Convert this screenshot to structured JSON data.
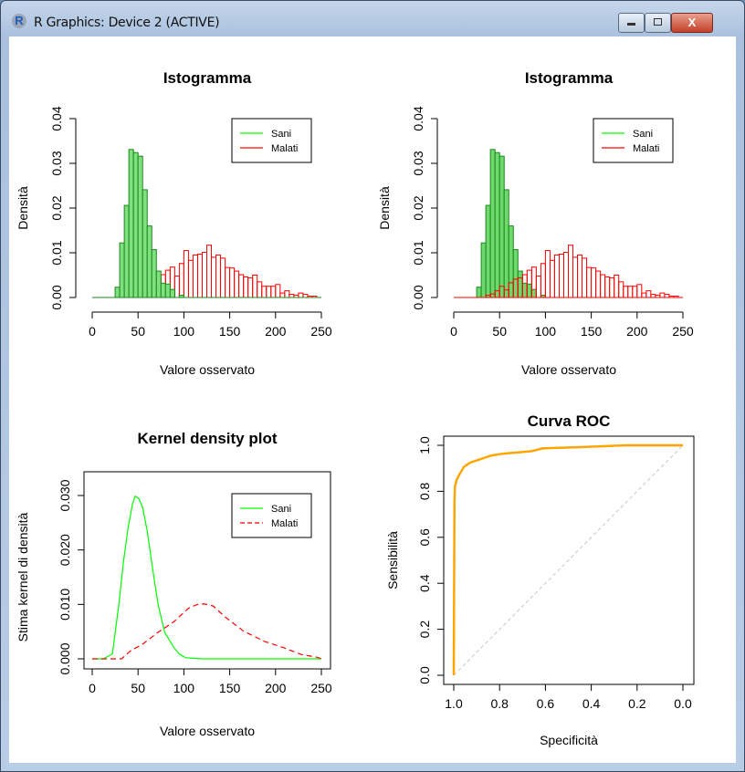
{
  "window": {
    "title": "R Graphics: Device 2 (ACTIVE)",
    "icon": "r-logo-icon",
    "close_label": "X"
  },
  "chart_data": [
    {
      "type": "bar",
      "title": "Istogramma",
      "xlabel": "Valore osservato",
      "ylabel": "Densità",
      "xlim": [
        0,
        250
      ],
      "ylim": [
        0,
        0.04
      ],
      "xticks": [
        "0",
        "50",
        "100",
        "150",
        "200",
        "250"
      ],
      "yticks": [
        "0.00",
        "0.01",
        "0.02",
        "0.03",
        "0.04"
      ],
      "bin_width": 5,
      "draw_order": [
        "Malati",
        "Sani"
      ],
      "legend": {
        "position": "top-right",
        "entries": [
          {
            "label": "Sani",
            "color": "#00ff00",
            "style": "solid"
          },
          {
            "label": "Malati",
            "color": "#ff0000",
            "style": "solid"
          }
        ]
      },
      "series": [
        {
          "name": "Sani",
          "color": "#1a8a1a",
          "fill": "#80e080",
          "bin_start": 25,
          "values": [
            0.0023,
            0.0122,
            0.0206,
            0.0331,
            0.0324,
            0.0316,
            0.0241,
            0.016,
            0.0107,
            0.0059,
            0.0032,
            0.003,
            0.0018,
            0,
            0.0005
          ]
        },
        {
          "name": "Malati",
          "color": "#ff0000",
          "fill": "none",
          "bin_start": 35,
          "values": [
            0.0005,
            0.0008,
            0.0015,
            0.0025,
            0.0017,
            0.0033,
            0.0041,
            0.0044,
            0.0051,
            0.0061,
            0.0068,
            0.0048,
            0.0076,
            0.0105,
            0.0083,
            0.0095,
            0.0097,
            0.0101,
            0.0117,
            0.009,
            0.0095,
            0.0088,
            0.0067,
            0.0066,
            0.0059,
            0.0051,
            0.0046,
            0.0044,
            0.005,
            0.0035,
            0.0025,
            0.0025,
            0.0025,
            0.0029,
            0.001,
            0.0015,
            0.0007,
            0.0005,
            0.001,
            0.0007,
            0.0003,
            0.0003
          ]
        }
      ]
    },
    {
      "type": "bar",
      "title": "Istogramma",
      "xlabel": "Valore osservato",
      "ylabel": "Densità",
      "xlim": [
        0,
        250
      ],
      "ylim": [
        0,
        0.04
      ],
      "xticks": [
        "0",
        "50",
        "100",
        "150",
        "200",
        "250"
      ],
      "yticks": [
        "0.00",
        "0.01",
        "0.02",
        "0.03",
        "0.04"
      ],
      "bin_width": 5,
      "draw_order": [
        "Sani",
        "Malati"
      ],
      "legend": {
        "position": "top-right",
        "entries": [
          {
            "label": "Sani",
            "color": "#00ff00",
            "style": "solid"
          },
          {
            "label": "Malati",
            "color": "#ff0000",
            "style": "solid"
          }
        ]
      },
      "series": [
        {
          "name": "Sani",
          "color": "#1a8a1a",
          "fill": "#6fd86f",
          "bin_start": 25,
          "values": [
            0.0023,
            0.0122,
            0.0206,
            0.0331,
            0.0324,
            0.0316,
            0.0241,
            0.016,
            0.0107,
            0.0059,
            0.0032,
            0.003,
            0.0018,
            0,
            0.0005
          ]
        },
        {
          "name": "Malati",
          "color": "#ff0000",
          "fill": "none",
          "bin_start": 35,
          "values": [
            0.0005,
            0.0008,
            0.0015,
            0.0025,
            0.0017,
            0.0033,
            0.0041,
            0.0044,
            0.0051,
            0.0061,
            0.0068,
            0.0048,
            0.0076,
            0.0105,
            0.0083,
            0.0095,
            0.0097,
            0.0101,
            0.0117,
            0.009,
            0.0095,
            0.0088,
            0.0067,
            0.0066,
            0.0059,
            0.0051,
            0.0046,
            0.0044,
            0.005,
            0.0035,
            0.0025,
            0.0025,
            0.0025,
            0.0029,
            0.001,
            0.0015,
            0.0007,
            0.0005,
            0.001,
            0.0007,
            0.0003,
            0.0003
          ]
        }
      ]
    },
    {
      "type": "line",
      "title": "Kernel density plot",
      "xlabel": "Valore osservato",
      "ylabel": "Stima kernel di densità",
      "xlim": [
        0,
        250
      ],
      "ylim": [
        0,
        0.03
      ],
      "xticks": [
        "0",
        "50",
        "100",
        "150",
        "200",
        "250"
      ],
      "yticks": [
        "0.000",
        "0.010",
        "0.020",
        "0.030"
      ],
      "legend": {
        "position": "top-right",
        "entries": [
          {
            "label": "Sani",
            "color": "#00ff00",
            "style": "solid"
          },
          {
            "label": "Malati",
            "color": "#ff0000",
            "style": "dashed"
          }
        ]
      },
      "series": [
        {
          "name": "Sani",
          "color": "#00ff00",
          "style": "solid",
          "x": [
            0,
            12,
            22,
            29,
            34,
            39,
            44,
            47,
            51,
            55,
            60,
            64,
            68,
            72,
            79,
            89,
            95,
            102,
            120,
            250
          ],
          "y": [
            0,
            0,
            0.0009,
            0.0099,
            0.0177,
            0.0239,
            0.0285,
            0.0299,
            0.0294,
            0.0278,
            0.0235,
            0.0188,
            0.0142,
            0.0099,
            0.0049,
            0.0021,
            0.0009,
            0.0002,
            0,
            0
          ]
        },
        {
          "name": "Malati",
          "color": "#ff0000",
          "style": "dashed",
          "x": [
            0,
            20,
            32,
            42,
            55,
            72,
            89,
            105,
            115,
            122,
            132,
            145,
            165,
            188,
            208,
            228,
            245,
            251
          ],
          "y": [
            0,
            0,
            0,
            0.0015,
            0.0027,
            0.0049,
            0.0068,
            0.0093,
            0.01,
            0.0101,
            0.0097,
            0.0077,
            0.0051,
            0.0032,
            0.0021,
            0.0008,
            0.0003,
            0
          ]
        }
      ]
    },
    {
      "type": "line",
      "title": "Curva ROC",
      "xlabel": "Specificità",
      "ylabel": "Sensibilità",
      "xlim": [
        1.0,
        0.0
      ],
      "ylim": [
        0,
        1
      ],
      "x_reversed": true,
      "xticks": [
        "1.0",
        "0.8",
        "0.6",
        "0.4",
        "0.2",
        "0.0"
      ],
      "yticks": [
        "0.0",
        "0.2",
        "0.4",
        "0.6",
        "0.8",
        "1.0"
      ],
      "reference_line": {
        "color": "#c8c8c8",
        "style": "dashed"
      },
      "series": [
        {
          "color": "#ffa500",
          "style": "solid",
          "x": [
            1.0,
            0.997,
            0.995,
            0.988,
            0.975,
            0.955,
            0.928,
            0.888,
            0.835,
            0.782,
            0.663,
            0.61,
            0.477,
            0.25,
            0.0
          ],
          "y": [
            0.0,
            0.742,
            0.82,
            0.848,
            0.874,
            0.907,
            0.925,
            0.938,
            0.956,
            0.964,
            0.974,
            0.987,
            0.991,
            1.0,
            1.0
          ]
        }
      ]
    }
  ]
}
